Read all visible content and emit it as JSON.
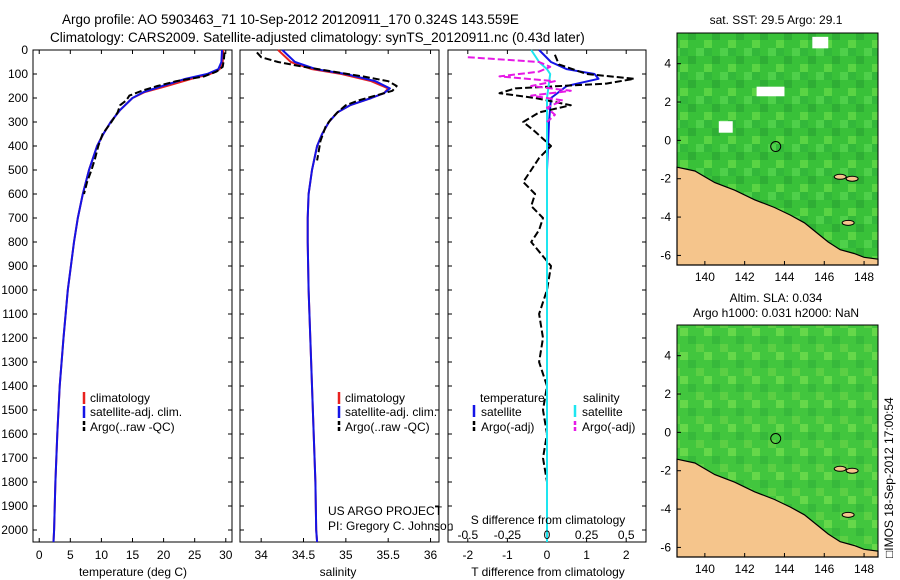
{
  "header": {
    "title_line1": "Argo profile: AO 5903463_71 10-Sep-2012 20120911_170 0.324S 143.559E",
    "title_line2": "Climatology: CARS2009. Satellite-adjusted climatology: synTS_20120911.nc (0.43d later)"
  },
  "credits": {
    "project": "US ARGO PROJECT",
    "pi": "PI: Gregory C. Johnson",
    "timestamp": "□IMOS 18-Sep-2012 17:00:54"
  },
  "colors": {
    "climatology": "#e8211f",
    "satellite": "#1414e6",
    "argo": "#000000",
    "salinity_sat": "#1ee6f0",
    "salinity_argo": "#e619e6",
    "land": "#f5c58c",
    "ocean_base": "#3cc23c"
  },
  "chart_data": [
    {
      "type": "line",
      "panel": "temperature",
      "xlabel": "temperature (deg C)",
      "ylabel": "",
      "xlim": [
        -1,
        31
      ],
      "ylim": [
        2050,
        0
      ],
      "xticks": [
        "0",
        "5",
        "10",
        "15",
        "20",
        "25",
        "30"
      ],
      "yticks": [
        "0",
        "100",
        "200",
        "300",
        "400",
        "500",
        "600",
        "700",
        "800",
        "900",
        "1000",
        "1100",
        "1200",
        "1300",
        "1400",
        "1500",
        "1600",
        "1700",
        "1800",
        "1900",
        "2000"
      ],
      "legend": [
        "climatology",
        "satellite-adj. clim.",
        "Argo(..raw -QC)"
      ],
      "legend_position": "lower-center",
      "series": [
        {
          "name": "climatology",
          "y": [
            0,
            50,
            80,
            100,
            120,
            150,
            175,
            200,
            250,
            300,
            350,
            400,
            500,
            600,
            700,
            800,
            1000,
            1200,
            1400,
            1600,
            1800,
            2000,
            2050
          ],
          "values": [
            29.6,
            29.5,
            29.0,
            27.5,
            24.5,
            20.5,
            17.0,
            15.0,
            13.0,
            11.5,
            10.3,
            9.3,
            8.0,
            7.0,
            6.2,
            5.6,
            4.6,
            3.9,
            3.3,
            2.9,
            2.6,
            2.4,
            2.3
          ]
        },
        {
          "name": "satellite-adj. clim.",
          "y": [
            0,
            50,
            80,
            100,
            120,
            150,
            175,
            200,
            250,
            300,
            350,
            400,
            500,
            600,
            700,
            800,
            1000,
            1200,
            1400,
            1600,
            1800,
            2000,
            2050
          ],
          "values": [
            29.4,
            29.3,
            28.8,
            27.0,
            23.5,
            19.8,
            16.8,
            15.0,
            13.0,
            11.5,
            10.3,
            9.3,
            8.0,
            7.0,
            6.2,
            5.6,
            4.6,
            3.9,
            3.3,
            2.9,
            2.6,
            2.4,
            2.3
          ]
        },
        {
          "name": "Argo(..raw -QC)",
          "y": [
            10,
            40,
            70,
            90,
            110,
            130,
            150,
            170,
            190,
            210,
            230,
            260,
            300,
            350,
            400,
            450,
            500,
            550,
            600
          ],
          "values": [
            29.8,
            29.7,
            29.5,
            28.5,
            26.5,
            22.0,
            19.0,
            16.5,
            14.5,
            14.0,
            13.0,
            12.6,
            11.6,
            10.2,
            9.5,
            9.0,
            8.4,
            7.7,
            7.2
          ]
        }
      ]
    },
    {
      "type": "line",
      "panel": "salinity",
      "xlabel": "salinity",
      "xlim": [
        33.75,
        36.1
      ],
      "ylim": [
        2050,
        0
      ],
      "xticks": [
        "34",
        "34.5",
        "35",
        "35.5",
        "36"
      ],
      "legend": [
        "climatology",
        "satellite-adj. clim.",
        "Argo(..raw -QC)"
      ],
      "legend_position": "lower-right",
      "series": [
        {
          "name": "climatology",
          "y": [
            0,
            50,
            80,
            100,
            130,
            160,
            180,
            200,
            230,
            260,
            300,
            350,
            400,
            500,
            600,
            700,
            800,
            1000,
            1200,
            1400,
            1600,
            1800,
            2000,
            2050
          ],
          "values": [
            34.2,
            34.35,
            34.6,
            34.95,
            35.3,
            35.5,
            35.45,
            35.3,
            35.05,
            34.9,
            34.8,
            34.72,
            34.66,
            34.6,
            34.56,
            34.55,
            34.55,
            34.56,
            34.58,
            34.6,
            34.62,
            34.64,
            34.65,
            34.66
          ]
        },
        {
          "name": "satellite-adj. clim.",
          "y": [
            0,
            50,
            80,
            100,
            130,
            160,
            180,
            200,
            230,
            260,
            300,
            350,
            400,
            500,
            600,
            700,
            800,
            1000,
            1200,
            1400,
            1600,
            1800,
            2000,
            2050
          ],
          "values": [
            34.25,
            34.4,
            34.65,
            35.0,
            35.35,
            35.52,
            35.45,
            35.3,
            35.05,
            34.9,
            34.8,
            34.72,
            34.66,
            34.6,
            34.56,
            34.55,
            34.55,
            34.56,
            34.58,
            34.6,
            34.62,
            34.64,
            34.65,
            34.66
          ]
        },
        {
          "name": "Argo(..raw -QC)",
          "y": [
            10,
            30,
            50,
            70,
            90,
            110,
            130,
            150,
            170,
            190,
            210,
            230,
            260,
            290,
            320,
            350,
            380,
            420,
            460
          ],
          "values": [
            33.95,
            34.0,
            34.2,
            34.5,
            34.85,
            35.2,
            35.5,
            35.6,
            35.55,
            35.35,
            35.15,
            35.0,
            34.9,
            34.82,
            34.76,
            34.73,
            34.7,
            34.68,
            34.66
          ]
        }
      ]
    },
    {
      "type": "line",
      "panel": "difference",
      "xlabel": "T difference from climatology",
      "xlabel_top": "S difference from climatology",
      "xlim": [
        -2.5,
        2.5
      ],
      "ylim": [
        2050,
        0
      ],
      "xticks_bottom": [
        "-2",
        "-1",
        "0",
        "1",
        "2"
      ],
      "xticks_top": [
        "-0.5",
        "-0.25",
        "0",
        "0.25",
        "0.5"
      ],
      "legend": [
        "temperature",
        "satellite",
        "Argo(-adj)",
        "salinity",
        "satellite",
        "Argo(-adj)"
      ],
      "legend_position": "lower-center",
      "series": [
        {
          "name": "temperature satellite",
          "y": [
            0,
            50,
            80,
            100,
            120,
            150,
            200,
            300,
            500,
            800,
            1200,
            1600,
            2050
          ],
          "values": [
            -0.2,
            0.1,
            0.5,
            1.2,
            1.3,
            0.5,
            0.1,
            0.05,
            0.0,
            0.0,
            0.0,
            0.0,
            0.0
          ]
        },
        {
          "name": "temperature Argo(-adj)",
          "y": [
            20,
            60,
            100,
            120,
            140,
            160,
            180,
            200,
            230,
            260,
            300,
            340,
            400,
            450,
            500,
            550,
            600,
            650,
            700,
            750,
            800,
            900,
            1000,
            1100,
            1200,
            1300,
            1400,
            1500,
            1600,
            1700,
            1800,
            1900,
            2000
          ],
          "values": [
            0.2,
            0.3,
            1.0,
            2.2,
            1.5,
            -0.8,
            -1.2,
            -0.3,
            0.6,
            -0.2,
            -0.6,
            -0.3,
            0.1,
            -0.2,
            -0.4,
            -0.6,
            -0.3,
            -0.4,
            -0.1,
            -0.2,
            -0.4,
            0.1,
            0.0,
            -0.2,
            -0.1,
            -0.2,
            0.0,
            -0.1,
            0.0,
            -0.1,
            0.0,
            0.0,
            0.0
          ]
        },
        {
          "name": "salinity satellite",
          "y": [
            0,
            50,
            80,
            100,
            150,
            200,
            300,
            500,
            800,
            1200,
            1600,
            2050
          ],
          "values": [
            -0.1,
            -0.05,
            0.0,
            0.02,
            0.01,
            0.0,
            0.0,
            0.0,
            0.0,
            0.0,
            0.0,
            0.0
          ]
        },
        {
          "name": "salinity Argo(-adj)",
          "y": [
            30,
            50,
            70,
            90,
            110,
            130,
            150,
            170,
            190,
            210,
            240,
            270,
            300
          ],
          "values": [
            -0.5,
            -0.05,
            0.02,
            -0.05,
            -0.3,
            0.05,
            -0.1,
            0.15,
            -0.1,
            0.1,
            0.0,
            0.05,
            0.0
          ]
        }
      ]
    }
  ],
  "maps": [
    {
      "title": "sat. SST: 29.5 Argo: 29.1",
      "title_line2": "",
      "xticks": [
        "140",
        "142",
        "144",
        "146",
        "148"
      ],
      "yticks": [
        "4",
        "2",
        "0",
        "-2",
        "-4",
        "-6"
      ],
      "marker": {
        "lon": 143.56,
        "lat": -0.32
      }
    },
    {
      "title": "Altim. SLA: 0.034",
      "title_line2": "Argo h1000: 0.031 h2000: NaN",
      "xticks": [
        "140",
        "142",
        "144",
        "146",
        "148"
      ],
      "yticks": [
        "4",
        "2",
        "0",
        "-2",
        "-4",
        "-6"
      ],
      "marker": {
        "lon": 143.56,
        "lat": -0.32
      }
    }
  ]
}
